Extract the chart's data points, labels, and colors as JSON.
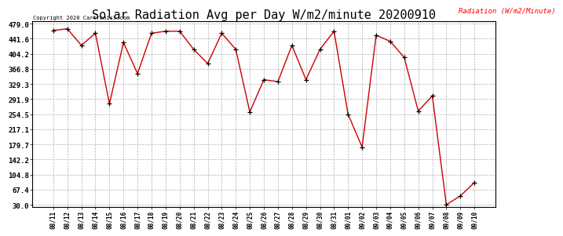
{
  "title": "Solar Radiation Avg per Day W/m2/minute 20200910",
  "legend_label": "Radiation (W/m2/Minute)",
  "copyright_text": "Copyright 2020 Cartronics.com",
  "labels": [
    "08/11",
    "08/12",
    "08/13",
    "08/14",
    "08/15",
    "08/16",
    "08/17",
    "08/18",
    "08/19",
    "08/20",
    "08/21",
    "08/22",
    "08/23",
    "08/24",
    "08/25",
    "08/26",
    "08/27",
    "08/28",
    "08/29",
    "08/30",
    "08/31",
    "09/01",
    "09/02",
    "09/03",
    "09/04",
    "09/05",
    "09/06",
    "09/07",
    "09/08",
    "09/09",
    "09/10"
  ],
  "values": [
    462,
    466,
    425,
    455,
    280,
    432,
    355,
    455,
    460,
    460,
    415,
    380,
    455,
    415,
    260,
    340,
    335,
    425,
    340,
    415,
    460,
    254,
    173,
    450,
    435,
    395,
    262,
    300,
    30,
    52,
    85
  ],
  "line_color": "#cc0000",
  "marker_color": "#000000",
  "background_color": "#ffffff",
  "grid_color": "#b0b0b0",
  "title_fontsize": 11,
  "ytick_values": [
    30.0,
    67.4,
    104.8,
    142.2,
    179.7,
    217.1,
    254.5,
    291.9,
    329.3,
    366.8,
    404.2,
    441.6,
    479.0
  ],
  "ymin": 30.0,
  "ymax": 479.0
}
